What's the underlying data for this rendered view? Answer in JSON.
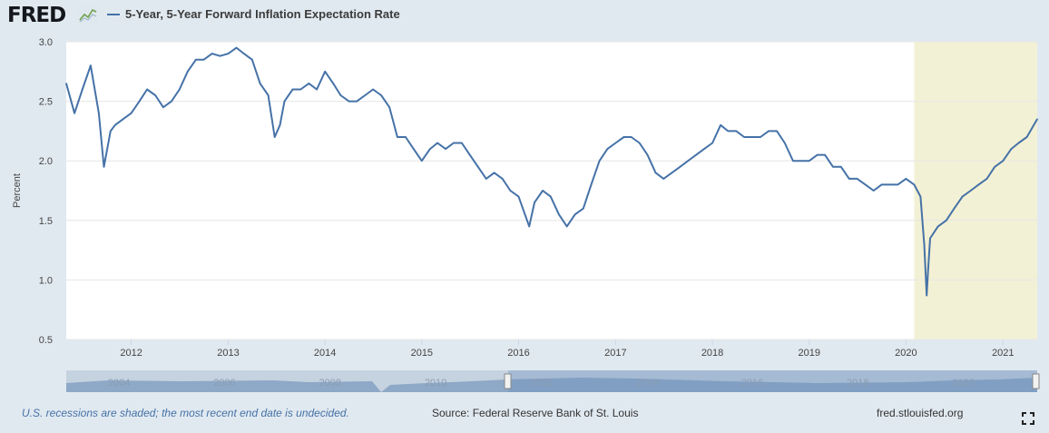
{
  "header": {
    "logo_text": "FRED",
    "logo_icon": "trend-chart-icon",
    "series_title": "5-Year, 5-Year Forward Inflation Expectation Rate"
  },
  "colors": {
    "series": "#4572a7",
    "recession": "#f3f1d5",
    "background": "#e1e9f0",
    "note": "#4572a7"
  },
  "footer": {
    "recession_note": "U.S. recessions are shaded; the most recent end date is undecided.",
    "source": "Source: Federal Reserve Bank of St. Louis",
    "site": "fred.stlouisfed.org",
    "fullscreen_icon": "fullscreen-icon"
  },
  "chart_data": {
    "type": "line",
    "title": "5-Year, 5-Year Forward Inflation Expectation Rate",
    "ylabel": "Percent",
    "xlabel": "",
    "ylim": [
      0.5,
      3.0
    ],
    "yticks": [
      "0.5",
      "1.0",
      "1.5",
      "2.0",
      "2.5",
      "3.0"
    ],
    "xlim": [
      "2011-05-01",
      "2021-05-10"
    ],
    "xticks": [
      "2012",
      "2013",
      "2014",
      "2015",
      "2016",
      "2017",
      "2018",
      "2019",
      "2020",
      "2021"
    ],
    "grid": true,
    "recession": {
      "start": "2020-02-01",
      "end": "2021-05-10"
    },
    "series": [
      {
        "name": "5-Year, 5-Year Forward Inflation Expectation Rate",
        "x": [
          "2011-05-01",
          "2011-06-01",
          "2011-07-01",
          "2011-08-01",
          "2011-09-01",
          "2011-09-20",
          "2011-10-15",
          "2011-11-01",
          "2011-12-01",
          "2012-01-01",
          "2012-02-01",
          "2012-03-01",
          "2012-04-01",
          "2012-05-01",
          "2012-06-01",
          "2012-07-01",
          "2012-08-01",
          "2012-09-01",
          "2012-10-01",
          "2012-11-01",
          "2012-12-01",
          "2013-01-01",
          "2013-02-01",
          "2013-03-01",
          "2013-04-01",
          "2013-05-01",
          "2013-06-01",
          "2013-06-25",
          "2013-07-15",
          "2013-08-01",
          "2013-09-01",
          "2013-10-01",
          "2013-11-01",
          "2013-12-01",
          "2014-01-01",
          "2014-02-01",
          "2014-03-01",
          "2014-04-01",
          "2014-05-01",
          "2014-06-01",
          "2014-07-01",
          "2014-08-01",
          "2014-09-01",
          "2014-10-01",
          "2014-11-01",
          "2014-12-01",
          "2015-01-01",
          "2015-02-01",
          "2015-03-01",
          "2015-04-01",
          "2015-05-01",
          "2015-06-01",
          "2015-07-01",
          "2015-08-01",
          "2015-09-01",
          "2015-10-01",
          "2015-11-01",
          "2015-12-01",
          "2016-01-01",
          "2016-02-10",
          "2016-03-01",
          "2016-04-01",
          "2016-05-01",
          "2016-06-01",
          "2016-07-01",
          "2016-08-01",
          "2016-09-01",
          "2016-10-01",
          "2016-11-01",
          "2016-12-01",
          "2017-01-01",
          "2017-02-01",
          "2017-03-01",
          "2017-04-01",
          "2017-05-01",
          "2017-06-01",
          "2017-07-01",
          "2017-08-01",
          "2017-09-01",
          "2017-10-01",
          "2017-11-01",
          "2017-12-01",
          "2018-01-01",
          "2018-02-01",
          "2018-03-01",
          "2018-04-01",
          "2018-05-01",
          "2018-06-01",
          "2018-07-01",
          "2018-08-01",
          "2018-09-01",
          "2018-10-01",
          "2018-11-01",
          "2018-12-01",
          "2019-01-01",
          "2019-02-01",
          "2019-03-01",
          "2019-04-01",
          "2019-05-01",
          "2019-06-01",
          "2019-07-01",
          "2019-08-01",
          "2019-09-01",
          "2019-10-01",
          "2019-11-01",
          "2019-12-01",
          "2020-01-01",
          "2020-02-01",
          "2020-02-25",
          "2020-03-10",
          "2020-03-19",
          "2020-03-25",
          "2020-04-01",
          "2020-05-01",
          "2020-06-01",
          "2020-07-01",
          "2020-08-01",
          "2020-09-01",
          "2020-10-01",
          "2020-11-01",
          "2020-12-01",
          "2021-01-01",
          "2021-02-01",
          "2021-03-01",
          "2021-04-01",
          "2021-05-10"
        ],
        "values": [
          2.65,
          2.4,
          2.6,
          2.8,
          2.4,
          1.95,
          2.25,
          2.3,
          2.35,
          2.4,
          2.5,
          2.6,
          2.55,
          2.45,
          2.5,
          2.6,
          2.75,
          2.85,
          2.85,
          2.9,
          2.88,
          2.9,
          2.95,
          2.9,
          2.85,
          2.65,
          2.55,
          2.2,
          2.3,
          2.5,
          2.6,
          2.6,
          2.65,
          2.6,
          2.75,
          2.65,
          2.55,
          2.5,
          2.5,
          2.55,
          2.6,
          2.55,
          2.45,
          2.2,
          2.2,
          2.1,
          2.0,
          2.1,
          2.15,
          2.1,
          2.15,
          2.15,
          2.05,
          1.95,
          1.85,
          1.9,
          1.85,
          1.75,
          1.7,
          1.45,
          1.65,
          1.75,
          1.7,
          1.55,
          1.45,
          1.55,
          1.6,
          1.8,
          2.0,
          2.1,
          2.15,
          2.2,
          2.2,
          2.15,
          2.05,
          1.9,
          1.85,
          1.9,
          1.95,
          2.0,
          2.05,
          2.1,
          2.15,
          2.3,
          2.25,
          2.25,
          2.2,
          2.2,
          2.2,
          2.25,
          2.25,
          2.15,
          2.0,
          2.0,
          2.0,
          2.05,
          2.05,
          1.95,
          1.95,
          1.85,
          1.85,
          1.8,
          1.75,
          1.8,
          1.8,
          1.8,
          1.85,
          1.8,
          1.7,
          1.3,
          0.87,
          1.1,
          1.35,
          1.45,
          1.5,
          1.6,
          1.7,
          1.75,
          1.8,
          1.85,
          1.95,
          2.0,
          2.1,
          2.15,
          2.2,
          2.35
        ]
      }
    ]
  },
  "navigator": {
    "ticks": [
      "2004",
      "2006",
      "2008",
      "2010",
      "2012",
      "2014",
      "2016",
      "2018",
      "2020"
    ]
  }
}
